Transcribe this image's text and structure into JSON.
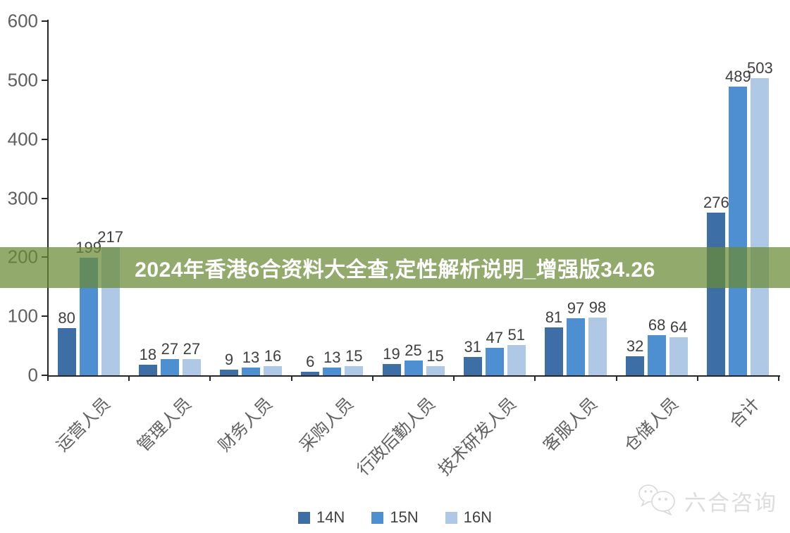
{
  "title_banner": {
    "text": "2024年香港6合资料大全查,定性解析说明_增强版34.26",
    "text_color": "#ffffff",
    "band_color": "rgba(106,138,53,0.73)"
  },
  "watermark": {
    "text": "六合咨询",
    "icon": "wechat-bubbles-icon",
    "color": "#dcdcdc"
  },
  "chart_data": {
    "type": "bar",
    "categories": [
      "运营人员",
      "管理人员",
      "财务人员",
      "采购人员",
      "行政后勤人员",
      "技术研发人员",
      "客服人员",
      "仓储人员",
      "合计"
    ],
    "series": [
      {
        "name": "14N",
        "color": "#3D6FA6",
        "values": [
          80,
          18,
          9,
          6,
          19,
          31,
          81,
          32,
          276
        ]
      },
      {
        "name": "15N",
        "color": "#4D8FD1",
        "values": [
          199,
          27,
          13,
          13,
          25,
          47,
          97,
          68,
          489
        ]
      },
      {
        "name": "16N",
        "color": "#AFC8E5",
        "values": [
          217,
          27,
          16,
          15,
          15,
          51,
          98,
          64,
          503
        ]
      }
    ],
    "title": "",
    "xlabel": "",
    "ylabel": "",
    "ylim": [
      0,
      600
    ],
    "yticks": [
      0,
      100,
      200,
      300,
      400,
      500,
      600
    ],
    "grid": false,
    "legend_position": "bottom",
    "data_labels": true
  }
}
